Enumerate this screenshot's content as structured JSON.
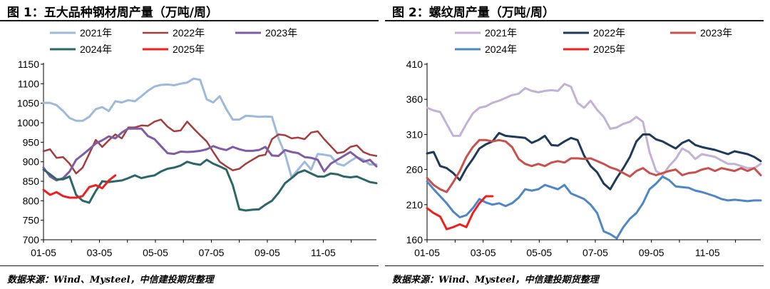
{
  "source_text": "数据来源：Wind、Mysteel，中信建投期货整理",
  "chart_data": [
    {
      "type": "line",
      "title": "图 1：五大品种钢材周产量（万吨/周）",
      "x_ticks": [
        "01-05",
        "03-05",
        "05-05",
        "07-05",
        "09-05",
        "11-05"
      ],
      "y_ticks": [
        700,
        750,
        800,
        850,
        900,
        950,
        1000,
        1050,
        1100,
        1150
      ],
      "ylim": [
        700,
        1150
      ],
      "xlim_week": [
        1,
        52
      ],
      "legend_layout": [
        [
          "2021年",
          "2022年",
          "2023年"
        ],
        [
          "2024年",
          "2025年"
        ]
      ],
      "series": [
        {
          "name": "2021年",
          "color": "#9DBADC",
          "width": 3,
          "week": [
            1,
            2,
            3,
            4,
            5,
            6,
            7,
            8,
            9,
            10,
            11,
            12,
            13,
            14,
            15,
            16,
            17,
            18,
            19,
            20,
            21,
            22,
            23,
            24,
            25,
            26,
            27,
            28,
            29,
            30,
            31,
            32,
            33,
            34,
            35,
            36,
            37,
            38,
            39,
            40,
            41,
            42,
            43,
            44,
            45,
            46,
            47,
            48,
            49,
            50,
            51,
            52
          ],
          "values": [
            1051,
            1051,
            1045,
            1030,
            1012,
            1005,
            1005,
            1015,
            1035,
            1040,
            1030,
            1055,
            1052,
            1058,
            1055,
            1068,
            1082,
            1093,
            1097,
            1098,
            1096,
            1100,
            1103,
            1113,
            1110,
            1060,
            1052,
            1068,
            1035,
            1008,
            1008,
            1018,
            1017,
            1015,
            1016,
            1015,
            960,
            920,
            860,
            880,
            900,
            880,
            920,
            918,
            915,
            895,
            890,
            902,
            912,
            905,
            893,
            893
          ]
        },
        {
          "name": "2022年",
          "color": "#A63C3C",
          "width": 2.5,
          "week": [
            1,
            2,
            3,
            4,
            5,
            6,
            7,
            8,
            9,
            10,
            11,
            12,
            13,
            14,
            15,
            16,
            17,
            18,
            19,
            20,
            21,
            22,
            23,
            24,
            25,
            26,
            27,
            28,
            29,
            30,
            31,
            32,
            33,
            34,
            35,
            36,
            37,
            38,
            39,
            40,
            41,
            42,
            43,
            44,
            45,
            46,
            47,
            48,
            49,
            50,
            51,
            52
          ],
          "values": [
            927,
            932,
            910,
            912,
            895,
            870,
            885,
            920,
            956,
            938,
            955,
            970,
            960,
            988,
            988,
            993,
            992,
            1003,
            1008,
            990,
            978,
            980,
            1003,
            985,
            968,
            952,
            925,
            900,
            888,
            878,
            882,
            895,
            905,
            915,
            918,
            958,
            970,
            968,
            960,
            962,
            958,
            975,
            978,
            958,
            940,
            922,
            925,
            938,
            942,
            925,
            918,
            915
          ]
        },
        {
          "name": "2023年",
          "color": "#7F5CA6",
          "width": 3,
          "week": [
            1,
            2,
            3,
            4,
            5,
            6,
            7,
            8,
            9,
            10,
            11,
            12,
            13,
            14,
            15,
            16,
            17,
            18,
            19,
            20,
            21,
            22,
            23,
            24,
            25,
            26,
            27,
            28,
            29,
            30,
            31,
            32,
            33,
            34,
            35,
            36,
            37,
            38,
            39,
            40,
            41,
            42,
            43,
            44,
            45,
            46,
            47,
            48,
            49,
            50,
            51,
            52
          ],
          "values": [
            885,
            862,
            852,
            858,
            875,
            905,
            918,
            932,
            947,
            955,
            965,
            960,
            975,
            985,
            985,
            985,
            966,
            958,
            940,
            922,
            920,
            926,
            925,
            926,
            928,
            932,
            940,
            934,
            930,
            938,
            932,
            928,
            928,
            930,
            938,
            916,
            915,
            930,
            925,
            922,
            912,
            910,
            905,
            875,
            895,
            905,
            915,
            925,
            912,
            900,
            905,
            888
          ]
        },
        {
          "name": "2024年",
          "color": "#2B6668",
          "width": 3,
          "week": [
            1,
            2,
            3,
            4,
            5,
            6,
            7,
            8,
            9,
            10,
            11,
            12,
            13,
            14,
            15,
            16,
            17,
            18,
            19,
            20,
            21,
            22,
            23,
            24,
            25,
            26,
            27,
            28,
            29,
            30,
            31,
            32,
            33,
            34,
            35,
            36,
            37,
            38,
            39,
            40,
            41,
            42,
            43,
            44,
            45,
            46,
            47,
            48,
            49,
            50,
            51,
            52
          ],
          "values": [
            880,
            868,
            855,
            855,
            862,
            815,
            800,
            795,
            825,
            850,
            848,
            850,
            852,
            858,
            865,
            858,
            862,
            865,
            875,
            882,
            885,
            890,
            900,
            895,
            892,
            905,
            895,
            888,
            880,
            840,
            778,
            775,
            777,
            778,
            790,
            800,
            820,
            845,
            858,
            872,
            878,
            870,
            862,
            862,
            870,
            868,
            862,
            860,
            862,
            855,
            848,
            845
          ]
        },
        {
          "name": "2025年",
          "color": "#F01E1E",
          "width": 3,
          "week": [
            1,
            2,
            3,
            4,
            5,
            6,
            7,
            8,
            9,
            10,
            11,
            12
          ],
          "values": [
            828,
            815,
            822,
            812,
            808,
            808,
            812,
            835,
            840,
            832,
            852,
            865
          ]
        }
      ]
    },
    {
      "type": "line",
      "title": "图 2：螺纹周产量（万吨/周）",
      "x_ticks": [
        "01-05",
        "03-05",
        "05-05",
        "07-05",
        "09-05",
        "11-05"
      ],
      "y_ticks": [
        160,
        210,
        260,
        310,
        360,
        410
      ],
      "ylim": [
        160,
        410
      ],
      "xlim_week": [
        1,
        52
      ],
      "legend_layout": [
        [
          "2021年",
          "2022年",
          "2023年"
        ],
        [
          "2024年",
          "2025年"
        ]
      ],
      "series": [
        {
          "name": "2021年",
          "color": "#C3B2D6",
          "width": 3,
          "week": [
            1,
            2,
            3,
            4,
            5,
            6,
            7,
            8,
            9,
            10,
            11,
            12,
            13,
            14,
            15,
            16,
            17,
            18,
            19,
            20,
            21,
            22,
            23,
            24,
            25,
            26,
            27,
            28,
            29,
            30,
            31,
            32,
            33,
            34,
            35,
            36,
            37,
            38,
            39,
            40,
            41,
            42,
            43,
            44,
            45,
            46,
            47,
            48,
            49,
            50,
            51,
            52
          ],
          "values": [
            348,
            344,
            342,
            325,
            308,
            308,
            325,
            340,
            348,
            350,
            355,
            358,
            362,
            366,
            368,
            376,
            372,
            370,
            372,
            373,
            372,
            382,
            378,
            355,
            348,
            358,
            345,
            335,
            318,
            320,
            325,
            328,
            335,
            328,
            285,
            258,
            252,
            265,
            275,
            290,
            285,
            275,
            282,
            280,
            278,
            273,
            268,
            268,
            265,
            262,
            262,
            268
          ]
        },
        {
          "name": "2022年",
          "color": "#1F3A5A",
          "width": 3,
          "week": [
            1,
            2,
            3,
            4,
            5,
            6,
            7,
            8,
            9,
            10,
            11,
            12,
            13,
            14,
            15,
            16,
            17,
            18,
            19,
            20,
            21,
            22,
            23,
            24,
            25,
            26,
            27,
            28,
            29,
            30,
            31,
            32,
            33,
            34,
            35,
            36,
            37,
            38,
            39,
            40,
            41,
            42,
            43,
            44,
            45,
            46,
            47,
            48,
            49,
            50,
            51,
            52
          ],
          "values": [
            283,
            285,
            265,
            262,
            255,
            245,
            262,
            275,
            290,
            296,
            300,
            312,
            308,
            307,
            306,
            305,
            298,
            302,
            308,
            295,
            294,
            300,
            305,
            302,
            280,
            265,
            256,
            240,
            232,
            248,
            262,
            278,
            300,
            310,
            310,
            303,
            300,
            295,
            290,
            298,
            302,
            295,
            292,
            290,
            288,
            285,
            282,
            286,
            284,
            282,
            278,
            272
          ]
        },
        {
          "name": "2023年",
          "color": "#C9504B",
          "width": 3,
          "week": [
            1,
            2,
            3,
            4,
            5,
            6,
            7,
            8,
            9,
            10,
            11,
            12,
            13,
            14,
            15,
            16,
            17,
            18,
            19,
            20,
            21,
            22,
            23,
            24,
            25,
            26,
            27,
            28,
            29,
            30,
            31,
            32,
            33,
            34,
            35,
            36,
            37,
            38,
            39,
            40,
            41,
            42,
            43,
            44,
            45,
            46,
            47,
            48,
            49,
            50,
            51,
            52
          ],
          "values": [
            248,
            238,
            232,
            228,
            242,
            258,
            278,
            292,
            302,
            302,
            300,
            302,
            300,
            292,
            275,
            268,
            265,
            268,
            265,
            270,
            272,
            270,
            276,
            276,
            275,
            276,
            272,
            268,
            263,
            260,
            255,
            250,
            258,
            262,
            255,
            252,
            255,
            258,
            260,
            252,
            255,
            256,
            260,
            262,
            258,
            262,
            260,
            258,
            262,
            258,
            262,
            252
          ]
        },
        {
          "name": "2024年",
          "color": "#4E87C8",
          "width": 3,
          "week": [
            1,
            2,
            3,
            4,
            5,
            6,
            7,
            8,
            9,
            10,
            11,
            12,
            13,
            14,
            15,
            16,
            17,
            18,
            19,
            20,
            21,
            22,
            23,
            24,
            25,
            26,
            27,
            28,
            29,
            30,
            31,
            32,
            33,
            34,
            35,
            36,
            37,
            38,
            39,
            40,
            41,
            42,
            43,
            44,
            45,
            46,
            47,
            48,
            49,
            50,
            51,
            52
          ],
          "values": [
            243,
            232,
            222,
            212,
            200,
            192,
            195,
            205,
            218,
            213,
            210,
            212,
            208,
            212,
            220,
            232,
            230,
            232,
            238,
            235,
            232,
            238,
            226,
            222,
            218,
            210,
            198,
            172,
            168,
            162,
            178,
            190,
            198,
            212,
            232,
            240,
            250,
            245,
            236,
            235,
            234,
            230,
            228,
            225,
            222,
            218,
            216,
            217,
            216,
            215,
            216,
            216
          ]
        },
        {
          "name": "2025年",
          "color": "#F01E1E",
          "width": 3,
          "week": [
            1,
            2,
            3,
            4,
            5,
            6,
            7,
            8,
            9,
            10,
            11
          ],
          "values": [
            205,
            198,
            193,
            175,
            178,
            182,
            178,
            198,
            212,
            222,
            222
          ]
        }
      ]
    }
  ]
}
